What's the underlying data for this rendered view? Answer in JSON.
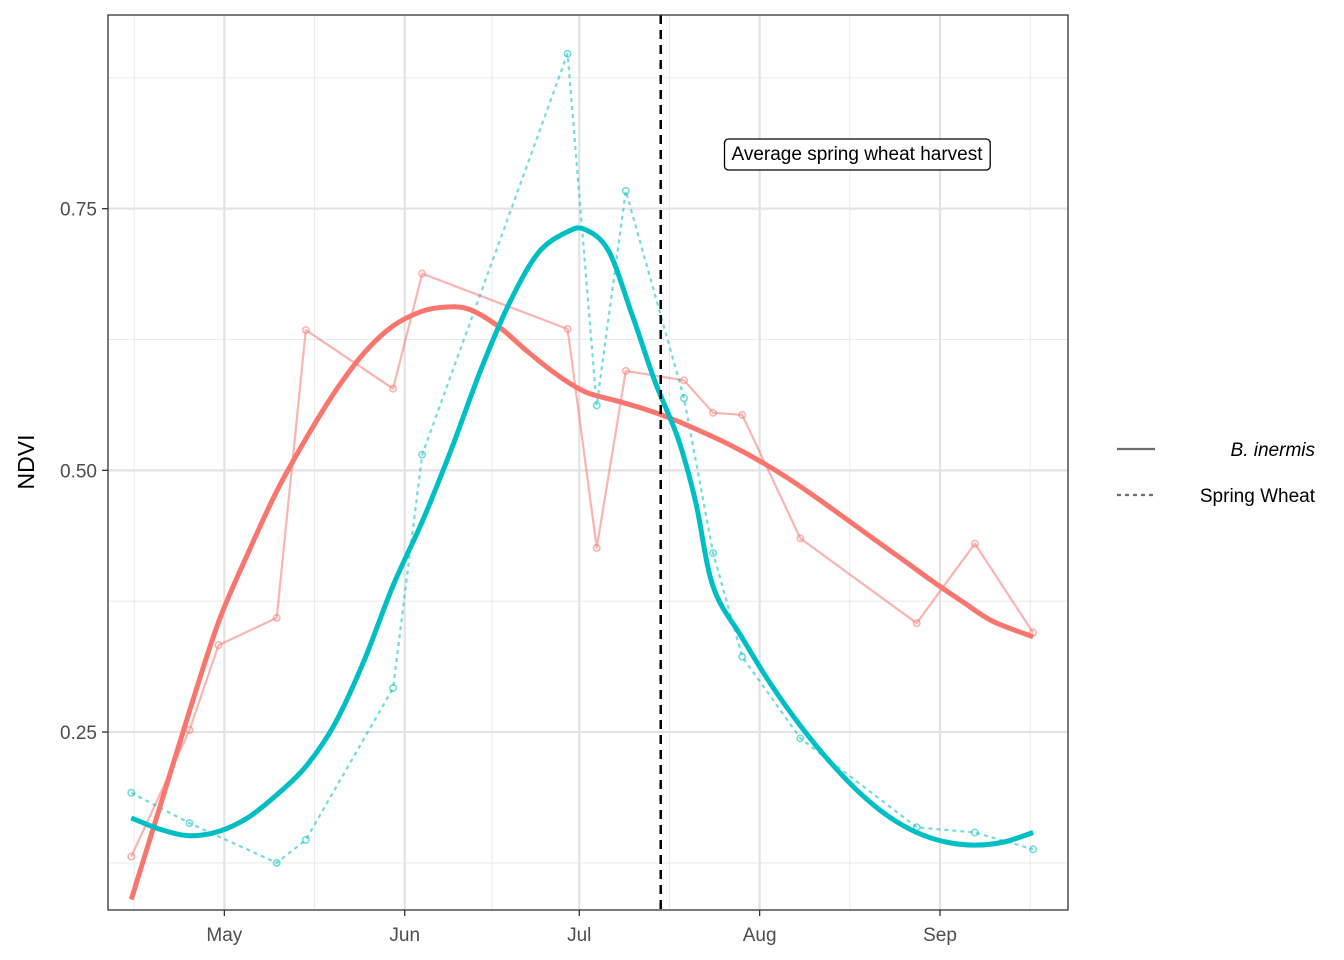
{
  "chart_data": {
    "type": "line",
    "title": "",
    "xlabel": "",
    "ylabel": "NDVI",
    "x_axis": {
      "type": "date",
      "range": [
        "2021-04-11",
        "2021-09-23"
      ],
      "ticks": [
        {
          "date": "2021-05-01",
          "label": "May"
        },
        {
          "date": "2021-06-01",
          "label": "Jun"
        },
        {
          "date": "2021-07-01",
          "label": "Jul"
        },
        {
          "date": "2021-08-01",
          "label": "Aug"
        },
        {
          "date": "2021-09-01",
          "label": "Sep"
        }
      ]
    },
    "y_axis": {
      "range": [
        0.08,
        0.935
      ],
      "ticks": [
        0.25,
        0.5,
        0.75
      ],
      "tick_labels": [
        "0.25",
        "0.50",
        "0.75"
      ]
    },
    "grid": true,
    "legend": {
      "position": "right",
      "entries": [
        {
          "label": "B. inermis",
          "linetype": "solid",
          "italic": true
        },
        {
          "label": "Spring Wheat",
          "linetype": "dashed",
          "italic": false
        }
      ]
    },
    "colors": {
      "b_inermis": "#F8766D",
      "spring_wheat": "#00BFC4",
      "reference_line": "#000000"
    },
    "reference_line": {
      "date": "2021-07-15",
      "linetype": "dashed",
      "label": "Average spring wheat harvest"
    },
    "series": [
      {
        "name": "B. inermis",
        "linetype": "solid",
        "observed": [
          {
            "x": "2021-04-15",
            "y": 0.131
          },
          {
            "x": "2021-04-25",
            "y": 0.252
          },
          {
            "x": "2021-04-30",
            "y": 0.333
          },
          {
            "x": "2021-05-10",
            "y": 0.359
          },
          {
            "x": "2021-05-15",
            "y": 0.634
          },
          {
            "x": "2021-05-30",
            "y": 0.578
          },
          {
            "x": "2021-06-04",
            "y": 0.688
          },
          {
            "x": "2021-06-29",
            "y": 0.635
          },
          {
            "x": "2021-07-04",
            "y": 0.426
          },
          {
            "x": "2021-07-09",
            "y": 0.595
          },
          {
            "x": "2021-07-19",
            "y": 0.586
          },
          {
            "x": "2021-07-24",
            "y": 0.555
          },
          {
            "x": "2021-07-29",
            "y": 0.553
          },
          {
            "x": "2021-08-08",
            "y": 0.435
          },
          {
            "x": "2021-08-28",
            "y": 0.354
          },
          {
            "x": "2021-09-07",
            "y": 0.43
          },
          {
            "x": "2021-09-17",
            "y": 0.345
          }
        ],
        "smoothed": [
          {
            "x": "2021-04-15",
            "y": 0.09
          },
          {
            "x": "2021-04-20",
            "y": 0.18
          },
          {
            "x": "2021-04-25",
            "y": 0.27
          },
          {
            "x": "2021-04-30",
            "y": 0.355
          },
          {
            "x": "2021-05-05",
            "y": 0.42
          },
          {
            "x": "2021-05-10",
            "y": 0.48
          },
          {
            "x": "2021-05-15",
            "y": 0.53
          },
          {
            "x": "2021-05-20",
            "y": 0.575
          },
          {
            "x": "2021-05-25",
            "y": 0.612
          },
          {
            "x": "2021-05-30",
            "y": 0.638
          },
          {
            "x": "2021-06-04",
            "y": 0.652
          },
          {
            "x": "2021-06-08",
            "y": 0.656
          },
          {
            "x": "2021-06-12",
            "y": 0.654
          },
          {
            "x": "2021-06-17",
            "y": 0.638
          },
          {
            "x": "2021-06-22",
            "y": 0.614
          },
          {
            "x": "2021-06-27",
            "y": 0.592
          },
          {
            "x": "2021-07-02",
            "y": 0.575
          },
          {
            "x": "2021-07-07",
            "y": 0.567
          },
          {
            "x": "2021-07-12",
            "y": 0.559
          },
          {
            "x": "2021-07-17",
            "y": 0.549
          },
          {
            "x": "2021-07-22",
            "y": 0.537
          },
          {
            "x": "2021-07-27",
            "y": 0.524
          },
          {
            "x": "2021-08-01",
            "y": 0.509
          },
          {
            "x": "2021-08-06",
            "y": 0.492
          },
          {
            "x": "2021-08-11",
            "y": 0.473
          },
          {
            "x": "2021-08-16",
            "y": 0.453
          },
          {
            "x": "2021-08-21",
            "y": 0.433
          },
          {
            "x": "2021-08-26",
            "y": 0.413
          },
          {
            "x": "2021-08-31",
            "y": 0.393
          },
          {
            "x": "2021-09-05",
            "y": 0.374
          },
          {
            "x": "2021-09-10",
            "y": 0.356
          },
          {
            "x": "2021-09-17",
            "y": 0.341
          }
        ]
      },
      {
        "name": "Spring Wheat",
        "linetype": "dashed",
        "observed": [
          {
            "x": "2021-04-15",
            "y": 0.192
          },
          {
            "x": "2021-04-25",
            "y": 0.163
          },
          {
            "x": "2021-05-10",
            "y": 0.125
          },
          {
            "x": "2021-05-15",
            "y": 0.147
          },
          {
            "x": "2021-05-30",
            "y": 0.292
          },
          {
            "x": "2021-06-04",
            "y": 0.515
          },
          {
            "x": "2021-06-29",
            "y": 0.898
          },
          {
            "x": "2021-07-04",
            "y": 0.562
          },
          {
            "x": "2021-07-09",
            "y": 0.767
          },
          {
            "x": "2021-07-19",
            "y": 0.569
          },
          {
            "x": "2021-07-24",
            "y": 0.421
          },
          {
            "x": "2021-07-29",
            "y": 0.322
          },
          {
            "x": "2021-08-08",
            "y": 0.244
          },
          {
            "x": "2021-08-28",
            "y": 0.159
          },
          {
            "x": "2021-09-07",
            "y": 0.154
          },
          {
            "x": "2021-09-17",
            "y": 0.138
          }
        ],
        "smoothed": [
          {
            "x": "2021-04-15",
            "y": 0.168
          },
          {
            "x": "2021-04-20",
            "y": 0.157
          },
          {
            "x": "2021-04-25",
            "y": 0.151
          },
          {
            "x": "2021-04-30",
            "y": 0.155
          },
          {
            "x": "2021-05-05",
            "y": 0.168
          },
          {
            "x": "2021-05-10",
            "y": 0.19
          },
          {
            "x": "2021-05-15",
            "y": 0.217
          },
          {
            "x": "2021-05-20",
            "y": 0.258
          },
          {
            "x": "2021-05-25",
            "y": 0.318
          },
          {
            "x": "2021-05-30",
            "y": 0.39
          },
          {
            "x": "2021-06-04",
            "y": 0.451
          },
          {
            "x": "2021-06-09",
            "y": 0.52
          },
          {
            "x": "2021-06-14",
            "y": 0.595
          },
          {
            "x": "2021-06-19",
            "y": 0.66
          },
          {
            "x": "2021-06-24",
            "y": 0.708
          },
          {
            "x": "2021-06-29",
            "y": 0.728
          },
          {
            "x": "2021-07-02",
            "y": 0.73
          },
          {
            "x": "2021-07-06",
            "y": 0.71
          },
          {
            "x": "2021-07-10",
            "y": 0.65
          },
          {
            "x": "2021-07-14",
            "y": 0.585
          },
          {
            "x": "2021-07-18",
            "y": 0.53
          },
          {
            "x": "2021-07-21",
            "y": 0.47
          },
          {
            "x": "2021-07-24",
            "y": 0.389
          },
          {
            "x": "2021-07-29",
            "y": 0.34
          },
          {
            "x": "2021-08-03",
            "y": 0.295
          },
          {
            "x": "2021-08-08",
            "y": 0.256
          },
          {
            "x": "2021-08-13",
            "y": 0.222
          },
          {
            "x": "2021-08-18",
            "y": 0.193
          },
          {
            "x": "2021-08-23",
            "y": 0.17
          },
          {
            "x": "2021-08-28",
            "y": 0.154
          },
          {
            "x": "2021-09-02",
            "y": 0.145
          },
          {
            "x": "2021-09-07",
            "y": 0.142
          },
          {
            "x": "2021-09-12",
            "y": 0.145
          },
          {
            "x": "2021-09-17",
            "y": 0.154
          }
        ]
      }
    ]
  }
}
